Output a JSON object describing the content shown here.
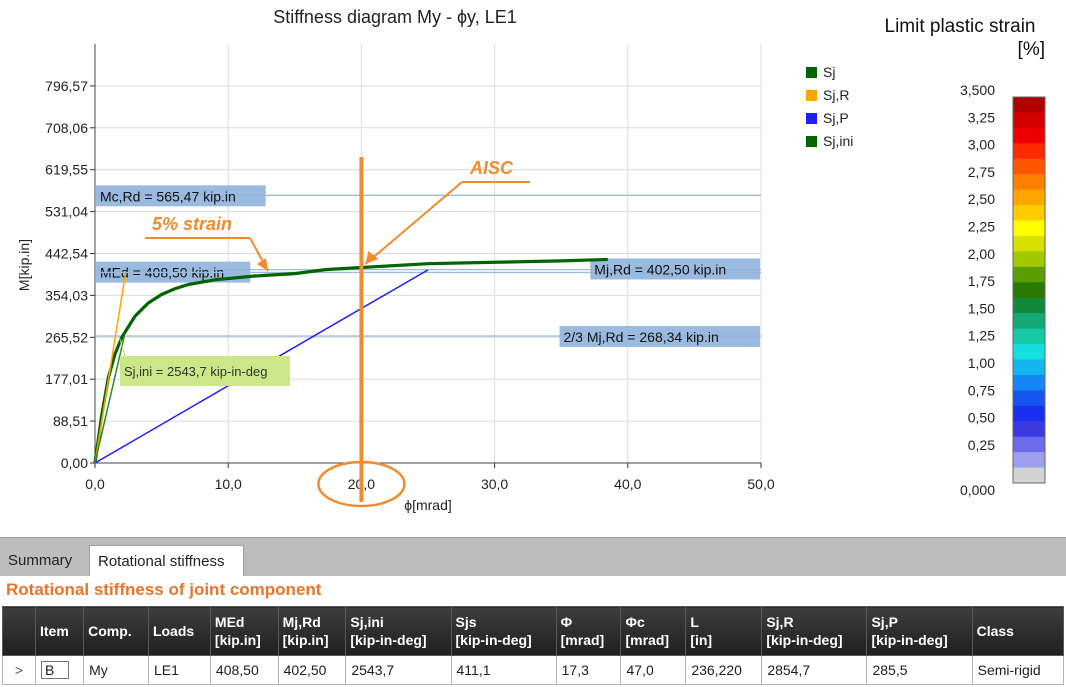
{
  "chart_data": {
    "type": "line",
    "title": "Stiffness diagram My - ϕy, LE1",
    "xlabel": "ϕ[mrad]",
    "ylabel": "M[kip.in]",
    "xlim": [
      0,
      50
    ],
    "ylim": [
      0,
      885.08
    ],
    "x_ticks": [
      "0,0",
      "10,0",
      "20,0",
      "30,0",
      "40,0",
      "50,0"
    ],
    "y_ticks": [
      "0,00",
      "88,51",
      "177,01",
      "265,52",
      "354,03",
      "442,54",
      "531,04",
      "619,55",
      "708,06",
      "796,57"
    ],
    "grid": true,
    "legend_position": "right",
    "legend": [
      {
        "name": "Sj",
        "color": "#006400"
      },
      {
        "name": "Sj,R",
        "color": "#ffa500"
      },
      {
        "name": "Sj,P",
        "color": "#1e1eff"
      },
      {
        "name": "Sj,ini",
        "color": "#006400"
      }
    ],
    "series": [
      {
        "name": "Sj",
        "color": "#006400",
        "x": [
          0,
          0.5,
          1,
          1.5,
          2,
          3,
          4,
          5,
          6,
          7,
          9,
          12,
          15,
          17.3,
          20,
          25,
          30,
          35,
          38.5
        ],
        "y": [
          0,
          100,
          180,
          230,
          265,
          310,
          338,
          356,
          368,
          377,
          387,
          395,
          400,
          408.5,
          413,
          421,
          424,
          427,
          430
        ]
      },
      {
        "name": "Sj,R",
        "color": "#ffa500",
        "x": [
          0,
          2.3
        ],
        "y": [
          0,
          402.5
        ]
      },
      {
        "name": "Sj,P",
        "color": "#1e1eff",
        "x": [
          0,
          25
        ],
        "y": [
          0,
          408
        ]
      },
      {
        "name": "Sj,ini",
        "color": "#2a8a2a",
        "x": [
          0,
          2.2
        ],
        "y": [
          0,
          268
        ]
      }
    ],
    "hlines": [
      {
        "y": 565.47,
        "label": "Mc,Rd = 565,47 kip.in",
        "label_side": "left"
      },
      {
        "y": 408.5,
        "label": "MEd = 408,50 kip.in",
        "label_side": "left"
      },
      {
        "y": 402.5,
        "label": "Mj,Rd = 402,50 kip.in",
        "label_side": "right"
      },
      {
        "y": 268.34,
        "label": "2/3 Mj,Rd = 268,34 kip.in",
        "label_side": "right"
      }
    ],
    "sjini_label": "Sj,ini = 2543,7 kip-in-deg",
    "annotations": {
      "aisc": "AISC",
      "strain": "5% strain",
      "vertical_line_x": 20
    }
  },
  "colorbar": {
    "title_line1": "Limit plastic strain",
    "title_line2": "[%]",
    "tick_labels": [
      "3,500",
      "3,25",
      "3,00",
      "2,75",
      "2,50",
      "2,25",
      "2,00",
      "1,75",
      "1,50",
      "1,25",
      "1,00",
      "0,75",
      "0,50",
      "0,25",
      "0,000"
    ],
    "colors": [
      "#b10000",
      "#d40000",
      "#ee0000",
      "#ff2a00",
      "#ff5500",
      "#ff8000",
      "#ffa500",
      "#ffcc00",
      "#ffff00",
      "#d7e000",
      "#a2c800",
      "#5b9e00",
      "#2a7a00",
      "#138a3a",
      "#14a877",
      "#16c8a6",
      "#14e0e0",
      "#14b6f0",
      "#1487f5",
      "#1555f0",
      "#1a2ef0",
      "#3a3ae0",
      "#6a6aea",
      "#9f9ff2",
      "#d3d3d3"
    ]
  },
  "tabs": {
    "summary": "Summary",
    "rotational": "Rotational stiffness"
  },
  "section_title": "Rotational stiffness of joint component",
  "table": {
    "headers": [
      {
        "line1": "",
        "line2": ""
      },
      {
        "line1": "Item",
        "line2": ""
      },
      {
        "line1": "Comp.",
        "line2": ""
      },
      {
        "line1": "Loads",
        "line2": ""
      },
      {
        "line1": "MEd",
        "line2": "[kip.in]"
      },
      {
        "line1": "Mj,Rd",
        "line2": "[kip.in]"
      },
      {
        "line1": "Sj,ini",
        "line2": "[kip-in-deg]"
      },
      {
        "line1": "Sjs",
        "line2": "[kip-in-deg]"
      },
      {
        "line1": "Φ",
        "line2": "[mrad]"
      },
      {
        "line1": "Φc",
        "line2": "[mrad]"
      },
      {
        "line1": "L",
        "line2": "[in]"
      },
      {
        "line1": "Sj,R",
        "line2": "[kip-in-deg]"
      },
      {
        "line1": "Sj,P",
        "line2": "[kip-in-deg]"
      },
      {
        "line1": "Class",
        "line2": ""
      }
    ],
    "row": {
      "expander": ">",
      "item": "B",
      "comp": "My",
      "loads": "LE1",
      "med": "408,50",
      "mjrd": "402,50",
      "sjini": "2543,7",
      "sjs": "411,1",
      "phi": "17,3",
      "phic": "47,0",
      "l": "236,220",
      "sjr": "2854,7",
      "sjp": "285,5",
      "class": "Semi-rigid"
    }
  }
}
